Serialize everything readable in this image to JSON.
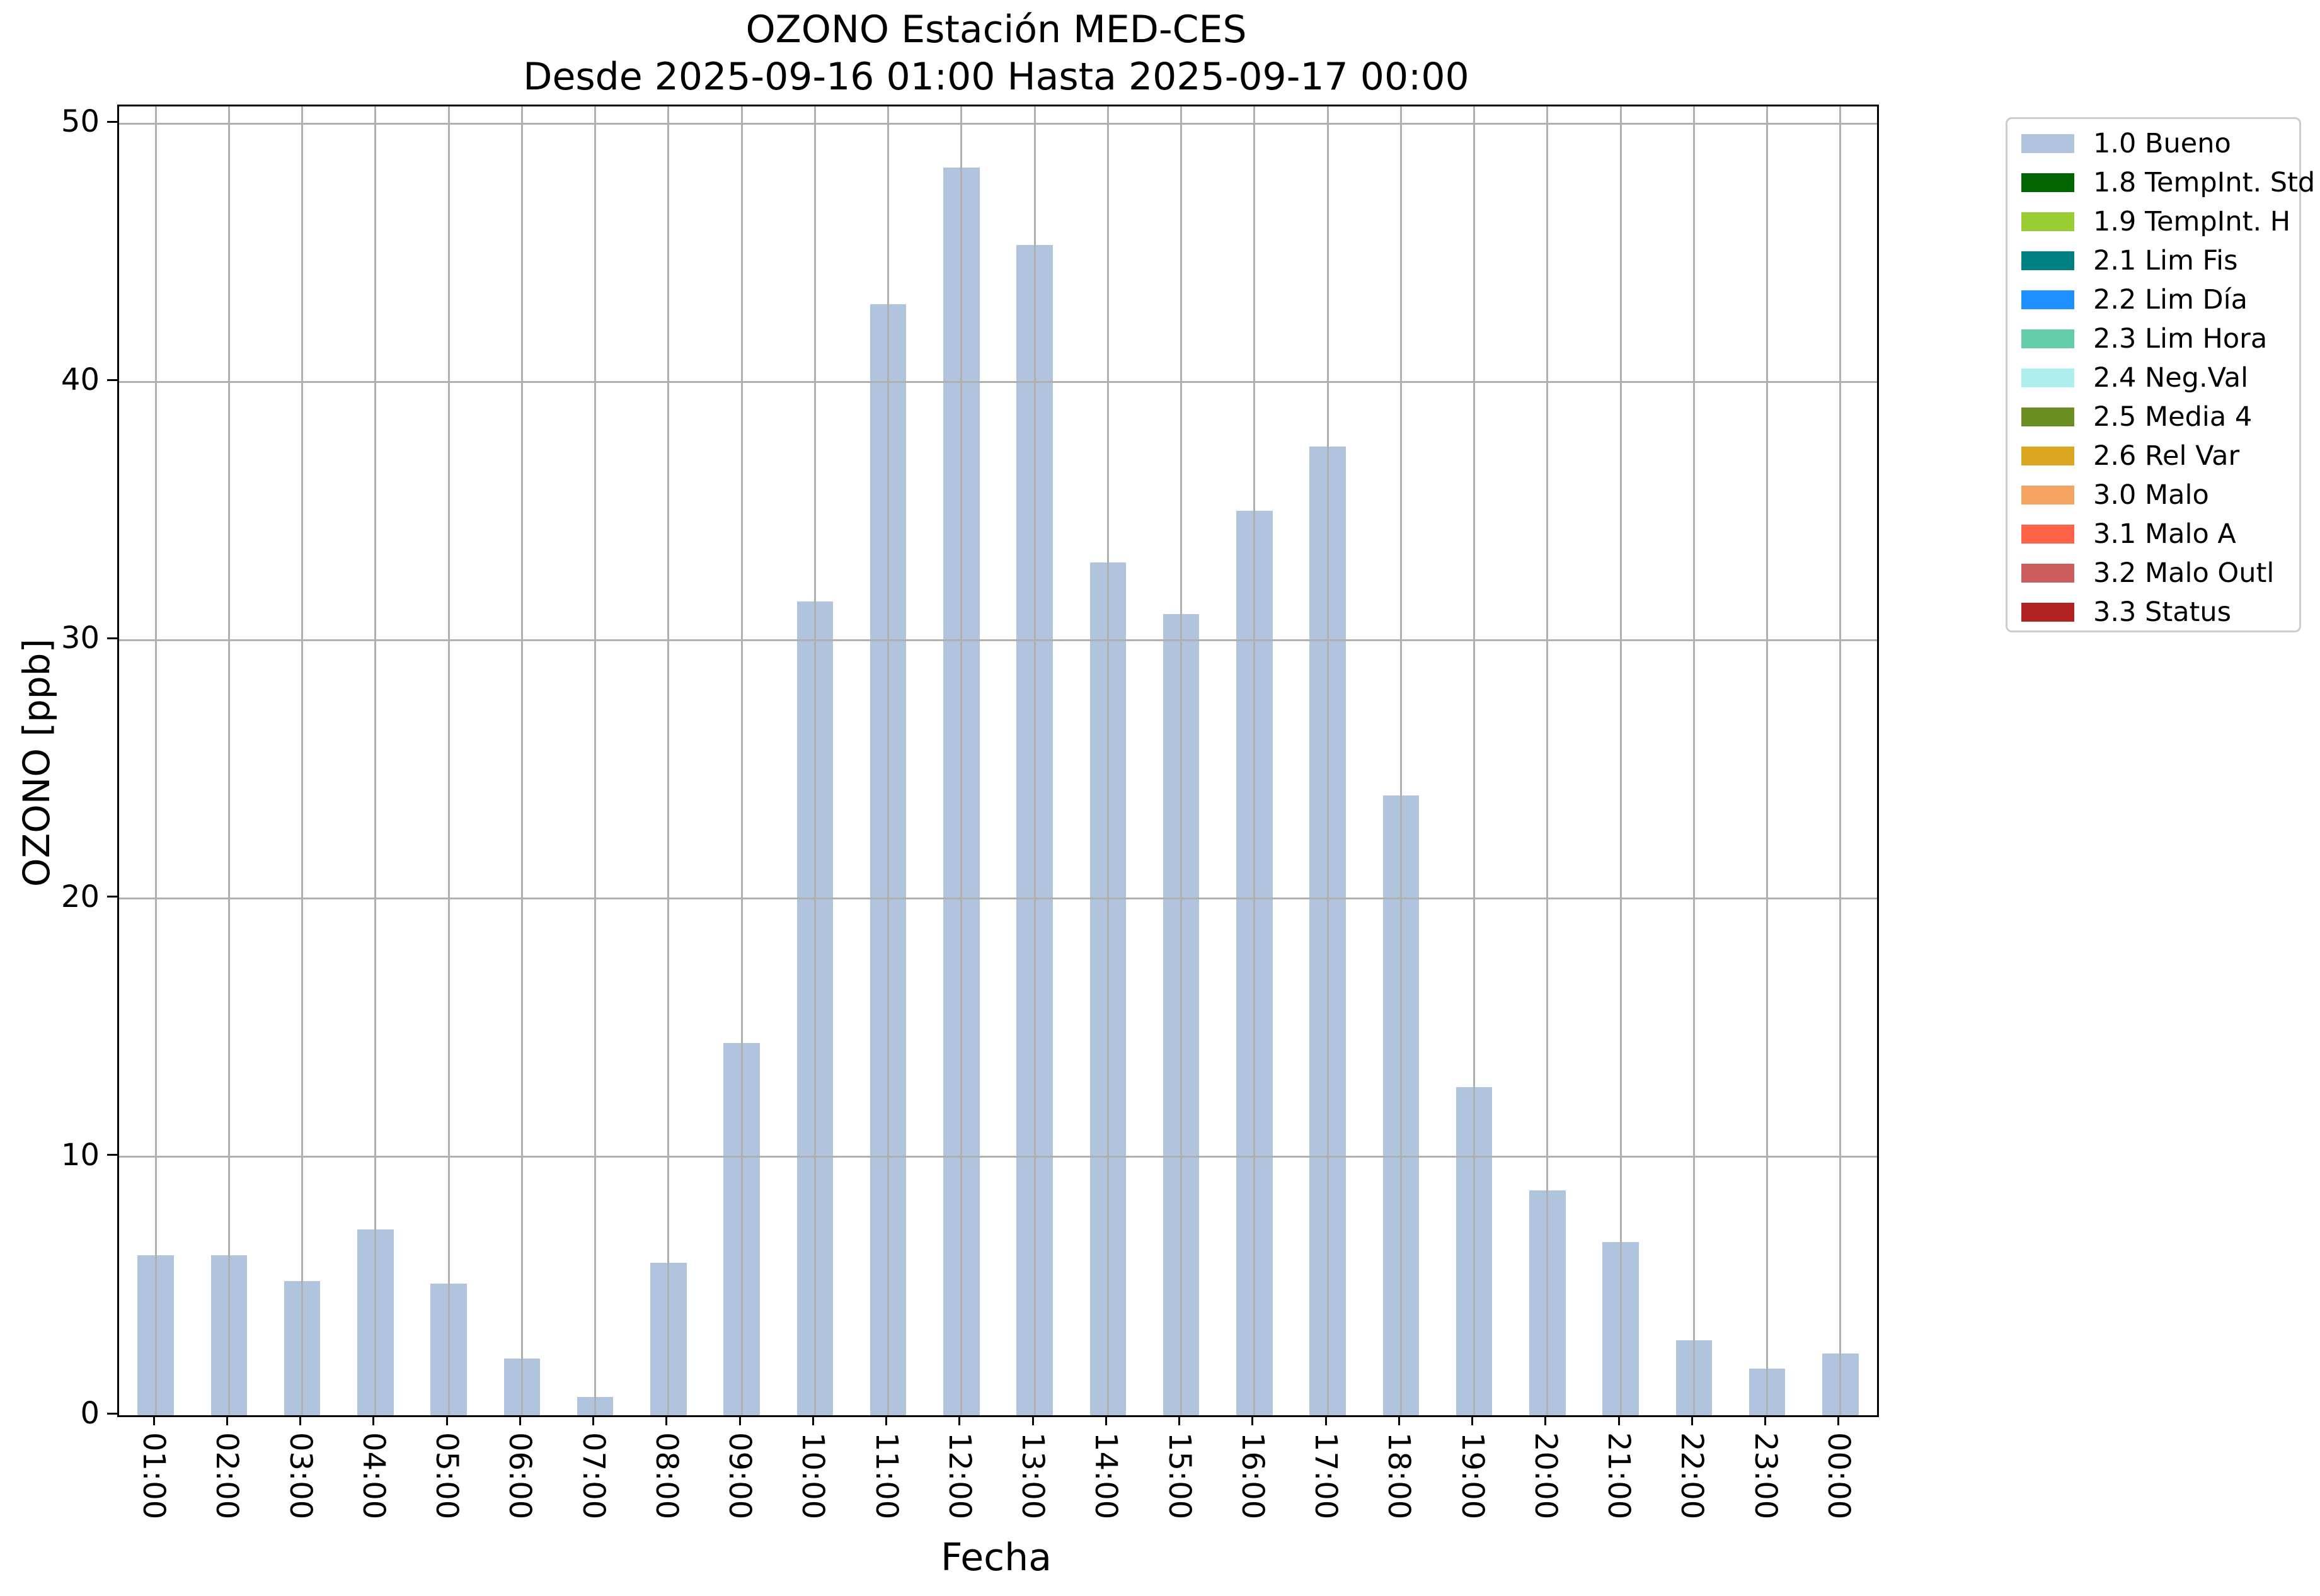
{
  "chart_data": {
    "type": "bar",
    "title": "OZONO Estación MED-CES",
    "subtitle": "Desde 2025-09-16 01:00 Hasta 2025-09-17 00:00",
    "xlabel": "Fecha",
    "ylabel": "OZONO [ppb]",
    "categories": [
      "01:00",
      "02:00",
      "03:00",
      "04:00",
      "05:00",
      "06:00",
      "07:00",
      "08:00",
      "09:00",
      "10:00",
      "11:00",
      "12:00",
      "13:00",
      "14:00",
      "15:00",
      "16:00",
      "17:00",
      "18:00",
      "19:00",
      "20:00",
      "21:00",
      "22:00",
      "23:00",
      "00:00"
    ],
    "values": [
      6.2,
      6.2,
      5.2,
      7.2,
      5.1,
      2.2,
      0.7,
      5.9,
      14.4,
      31.5,
      43.0,
      48.3,
      45.3,
      33.0,
      31.0,
      35.0,
      37.5,
      24.0,
      12.7,
      8.7,
      6.7,
      2.9,
      1.8,
      2.4
    ],
    "series_name": "1.0 Bueno",
    "bar_color": "#b0c4de",
    "ylim": [
      0,
      50
    ],
    "yticks": [
      0,
      10,
      20,
      30,
      40,
      50
    ],
    "grid": "on",
    "grid_color": "#b0b0b0",
    "legend_position": "outside-upper-right",
    "legend": [
      {
        "label": "1.0 Bueno",
        "color": "#b0c4de"
      },
      {
        "label": "1.8 TempInt. Std",
        "color": "#006400"
      },
      {
        "label": "1.9 TempInt. H",
        "color": "#9acd32"
      },
      {
        "label": "2.1 Lim Fis",
        "color": "#008080"
      },
      {
        "label": "2.2 Lim Día",
        "color": "#1e90ff"
      },
      {
        "label": "2.3 Lim Hora",
        "color": "#66cdaa"
      },
      {
        "label": "2.4 Neg.Val",
        "color": "#afeeee"
      },
      {
        "label": "2.5 Media 4",
        "color": "#6b8e23"
      },
      {
        "label": "2.6 Rel Var",
        "color": "#daa520"
      },
      {
        "label": "3.0 Malo",
        "color": "#f4a460"
      },
      {
        "label": "3.1 Malo A",
        "color": "#ff6347"
      },
      {
        "label": "3.2 Malo Outl",
        "color": "#cd5c5c"
      },
      {
        "label": "3.3 Status",
        "color": "#b22222"
      }
    ]
  }
}
